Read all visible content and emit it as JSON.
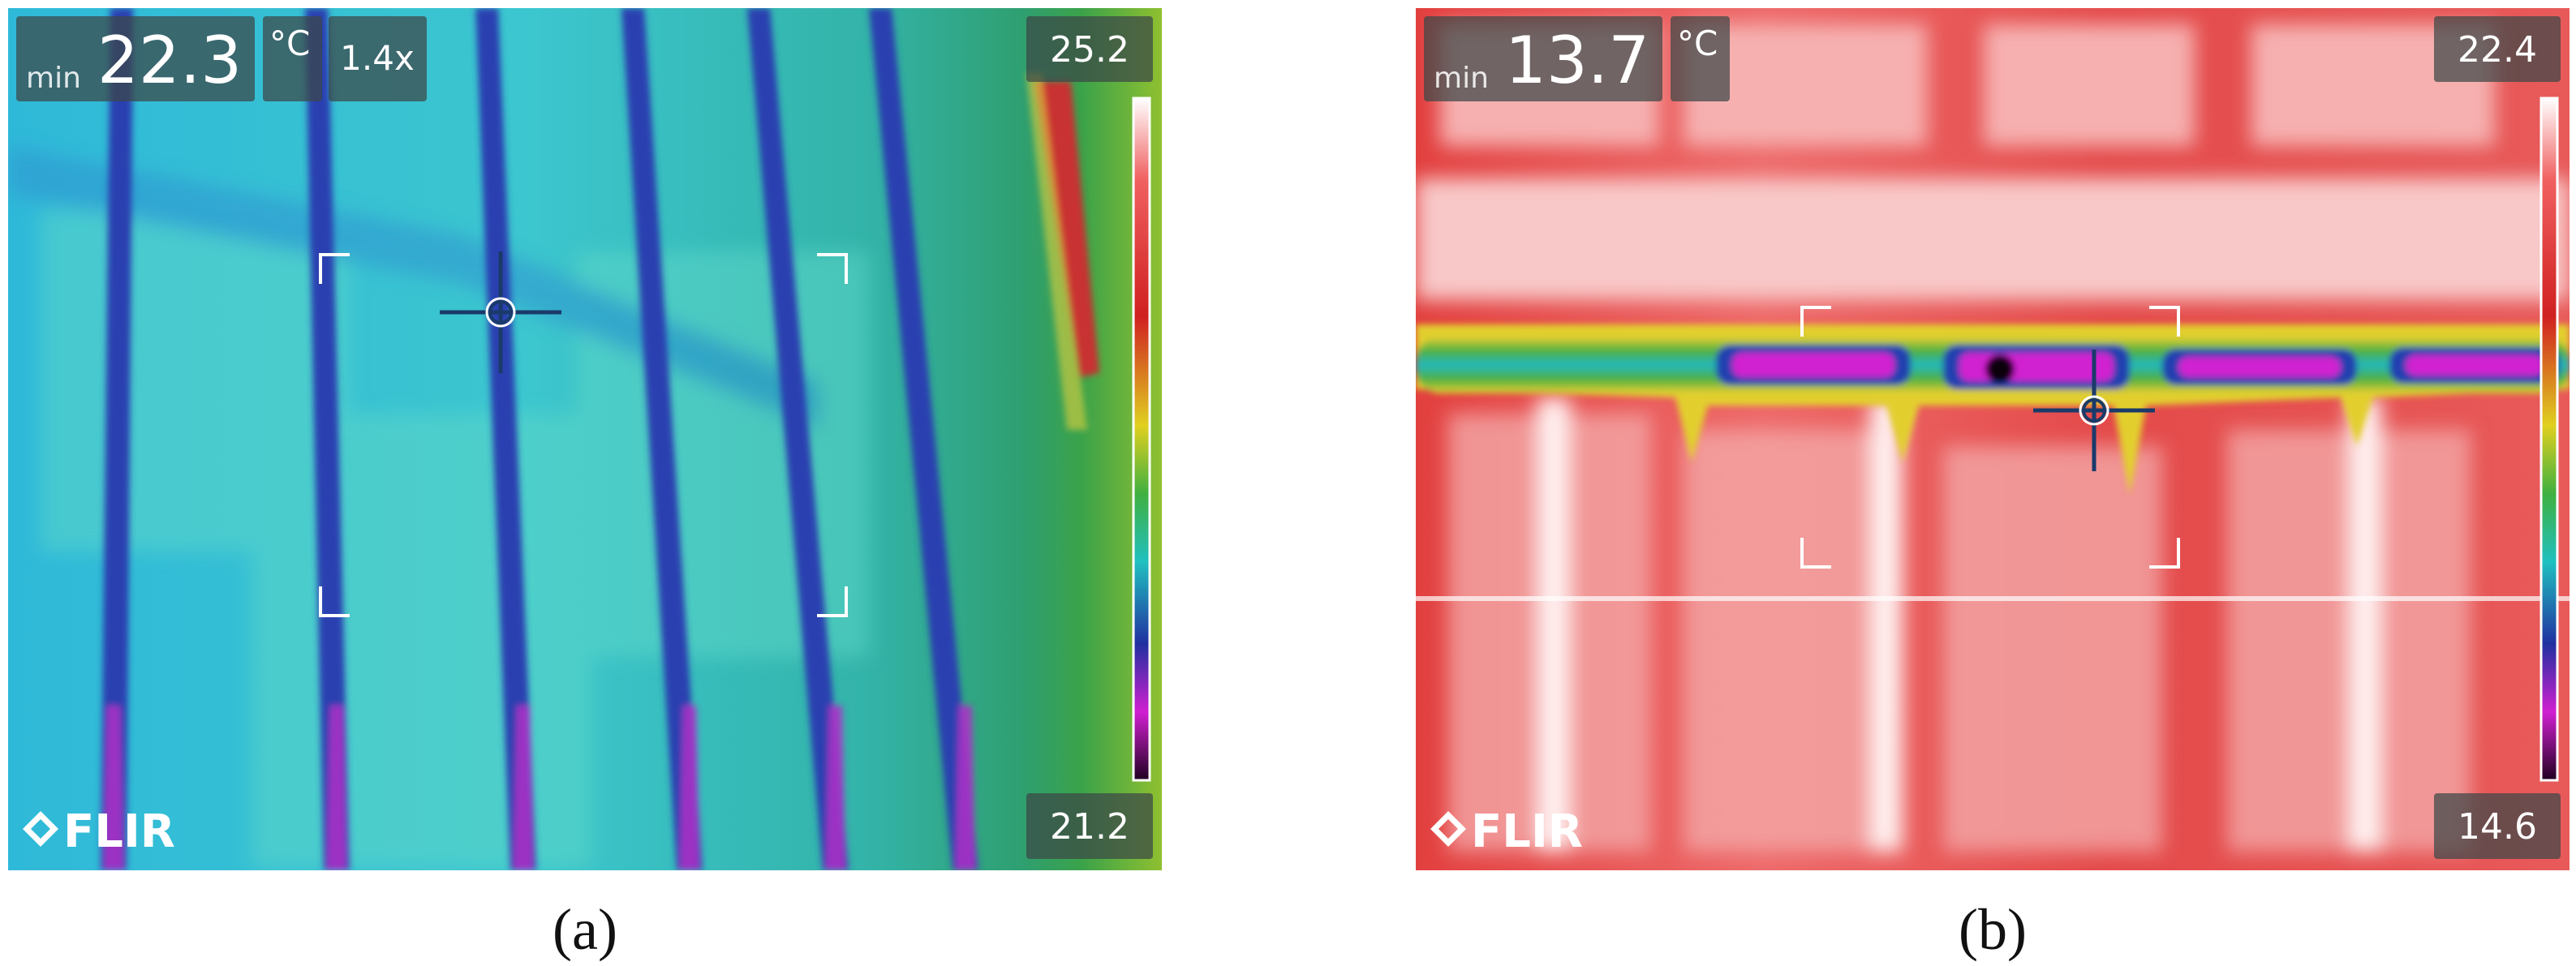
{
  "panels": [
    {
      "min_label": "min",
      "min_value": "22.3",
      "unit": "°C",
      "zoom": "1.4x",
      "scale_max": "25.2",
      "scale_min": "21.2",
      "brand": "FLIR",
      "caption": "(a)"
    },
    {
      "min_label": "min",
      "min_value": "13.7",
      "unit": "°C",
      "scale_max": "22.4",
      "scale_min": "14.6",
      "brand": "FLIR",
      "caption": "(b)"
    }
  ]
}
